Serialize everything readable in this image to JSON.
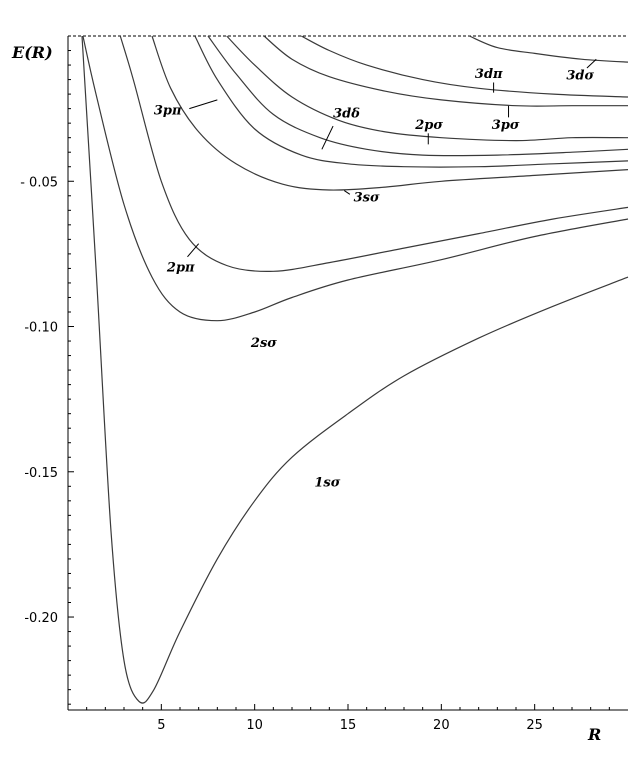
{
  "chart_data": {
    "type": "line",
    "title": "",
    "xlabel": "R",
    "ylabel": "E(R)",
    "xlim": [
      0,
      30
    ],
    "ylim": [
      -0.232,
      0
    ],
    "x_ticks": [
      5,
      10,
      15,
      20,
      25
    ],
    "x_tick_labels": [
      "5",
      "10",
      "15",
      "20",
      "25"
    ],
    "y_ticks": [
      -0.05,
      -0.1,
      -0.15,
      -0.2
    ],
    "y_tick_labels": [
      "- 0.05",
      "-0.10",
      "-0.15",
      "-0.20"
    ],
    "grid": false,
    "series": [
      {
        "name": "1sσ",
        "points": [
          [
            0.75,
            0
          ],
          [
            1.5,
            -0.08
          ],
          [
            2.3,
            -0.17
          ],
          [
            3,
            -0.215
          ],
          [
            3.8,
            -0.229
          ],
          [
            4.6,
            -0.225
          ],
          [
            6,
            -0.205
          ],
          [
            8,
            -0.18
          ],
          [
            10,
            -0.16
          ],
          [
            12,
            -0.145
          ],
          [
            15,
            -0.13
          ],
          [
            18,
            -0.117
          ],
          [
            22,
            -0.104
          ],
          [
            26,
            -0.093
          ],
          [
            30,
            -0.083
          ]
        ]
      },
      {
        "name": "2sσ",
        "points": [
          [
            0.8,
            0
          ],
          [
            1.5,
            -0.02
          ],
          [
            3,
            -0.058
          ],
          [
            4.5,
            -0.083
          ],
          [
            6,
            -0.095
          ],
          [
            8,
            -0.098
          ],
          [
            10,
            -0.095
          ],
          [
            12,
            -0.09
          ],
          [
            15,
            -0.084
          ],
          [
            20,
            -0.077
          ],
          [
            25,
            -0.069
          ],
          [
            30,
            -0.063
          ]
        ]
      },
      {
        "name": "2pπ",
        "points": [
          [
            2.8,
            0
          ],
          [
            3.5,
            -0.015
          ],
          [
            5,
            -0.05
          ],
          [
            6.5,
            -0.07
          ],
          [
            8.5,
            -0.079
          ],
          [
            11,
            -0.081
          ],
          [
            14,
            -0.078
          ],
          [
            18,
            -0.073
          ],
          [
            22,
            -0.068
          ],
          [
            26,
            -0.063
          ],
          [
            30,
            -0.059
          ]
        ]
      },
      {
        "name": "3sσ",
        "points": [
          [
            4.5,
            0
          ],
          [
            5.5,
            -0.018
          ],
          [
            7,
            -0.033
          ],
          [
            9,
            -0.044
          ],
          [
            11.5,
            -0.051
          ],
          [
            14,
            -0.053
          ],
          [
            17,
            -0.052
          ],
          [
            20,
            -0.05
          ],
          [
            25,
            -0.048
          ],
          [
            30,
            -0.046
          ]
        ]
      },
      {
        "name": "3pπ",
        "points": [
          [
            6.8,
            0
          ],
          [
            8,
            -0.015
          ],
          [
            10,
            -0.032
          ],
          [
            12.5,
            -0.041
          ],
          [
            15,
            -0.044
          ],
          [
            18,
            -0.045
          ],
          [
            22,
            -0.045
          ],
          [
            26,
            -0.044
          ],
          [
            30,
            -0.043
          ]
        ]
      },
      {
        "name": "3dδ",
        "points": [
          [
            7.5,
            0
          ],
          [
            9,
            -0.013
          ],
          [
            11,
            -0.027
          ],
          [
            13.5,
            -0.035
          ],
          [
            16,
            -0.039
          ],
          [
            19,
            -0.041
          ],
          [
            23,
            -0.041
          ],
          [
            27,
            -0.04
          ],
          [
            30,
            -0.039
          ]
        ]
      },
      {
        "name": "2pσ",
        "points": [
          [
            8.5,
            0
          ],
          [
            10,
            -0.01
          ],
          [
            12,
            -0.021
          ],
          [
            14.5,
            -0.029
          ],
          [
            17,
            -0.033
          ],
          [
            20,
            -0.035
          ],
          [
            24,
            -0.036
          ],
          [
            27,
            -0.035
          ],
          [
            30,
            -0.035
          ]
        ]
      },
      {
        "name": "3pσ",
        "points": [
          [
            10.5,
            0
          ],
          [
            12,
            -0.008
          ],
          [
            14,
            -0.014
          ],
          [
            17,
            -0.019
          ],
          [
            20,
            -0.022
          ],
          [
            24,
            -0.024
          ],
          [
            27,
            -0.024
          ],
          [
            30,
            -0.024
          ]
        ]
      },
      {
        "name": "3dπ",
        "points": [
          [
            12.5,
            0
          ],
          [
            14,
            -0.005
          ],
          [
            16,
            -0.01
          ],
          [
            19,
            -0.015
          ],
          [
            22,
            -0.018
          ],
          [
            26,
            -0.02
          ],
          [
            30,
            -0.021
          ]
        ]
      },
      {
        "name": "3dσ",
        "points": [
          [
            21.5,
            0
          ],
          [
            23,
            -0.004
          ],
          [
            25,
            -0.006
          ],
          [
            27.5,
            -0.008
          ],
          [
            30,
            -0.009
          ]
        ]
      }
    ],
    "curve_labels": [
      {
        "text": "1sσ",
        "x": 13.2,
        "y": -0.155,
        "lx1": null,
        "ly1": null,
        "lx2": null,
        "ly2": null
      },
      {
        "text": "2sσ",
        "x": 9.8,
        "y": -0.107,
        "lx1": null,
        "ly1": null,
        "lx2": null,
        "ly2": null
      },
      {
        "text": "2pπ",
        "x": 5.3,
        "y": -0.081,
        "lx1": 6.4,
        "ly1": -0.076,
        "lx2": 7.0,
        "ly2": -0.0715
      },
      {
        "text": "3sσ",
        "x": 15.3,
        "y": -0.057,
        "lx1": 15.1,
        "ly1": -0.0545,
        "lx2": 14.8,
        "ly2": -0.0532
      },
      {
        "text": "3pπ",
        "x": 4.6,
        "y": -0.027,
        "lx1": 6.5,
        "ly1": -0.025,
        "lx2": 8.0,
        "ly2": -0.022
      },
      {
        "text": "3dδ",
        "x": 14.2,
        "y": -0.028,
        "lx1": 14.2,
        "ly1": -0.031,
        "lx2": 13.6,
        "ly2": -0.039
      },
      {
        "text": "2pσ",
        "x": 18.6,
        "y": -0.032,
        "lx1": 19.3,
        "ly1": -0.0335,
        "lx2": 19.3,
        "ly2": -0.0373
      },
      {
        "text": "3pσ",
        "x": 22.7,
        "y": -0.032,
        "lx1": 23.6,
        "ly1": -0.028,
        "lx2": 23.6,
        "ly2": -0.024
      },
      {
        "text": "3dπ",
        "x": 21.8,
        "y": -0.0145,
        "lx1": 22.8,
        "ly1": -0.016,
        "lx2": 22.8,
        "ly2": -0.0195
      },
      {
        "text": "3dσ",
        "x": 26.7,
        "y": -0.015,
        "lx1": 27.8,
        "ly1": -0.011,
        "lx2": 28.3,
        "ly2": -0.008
      }
    ]
  }
}
